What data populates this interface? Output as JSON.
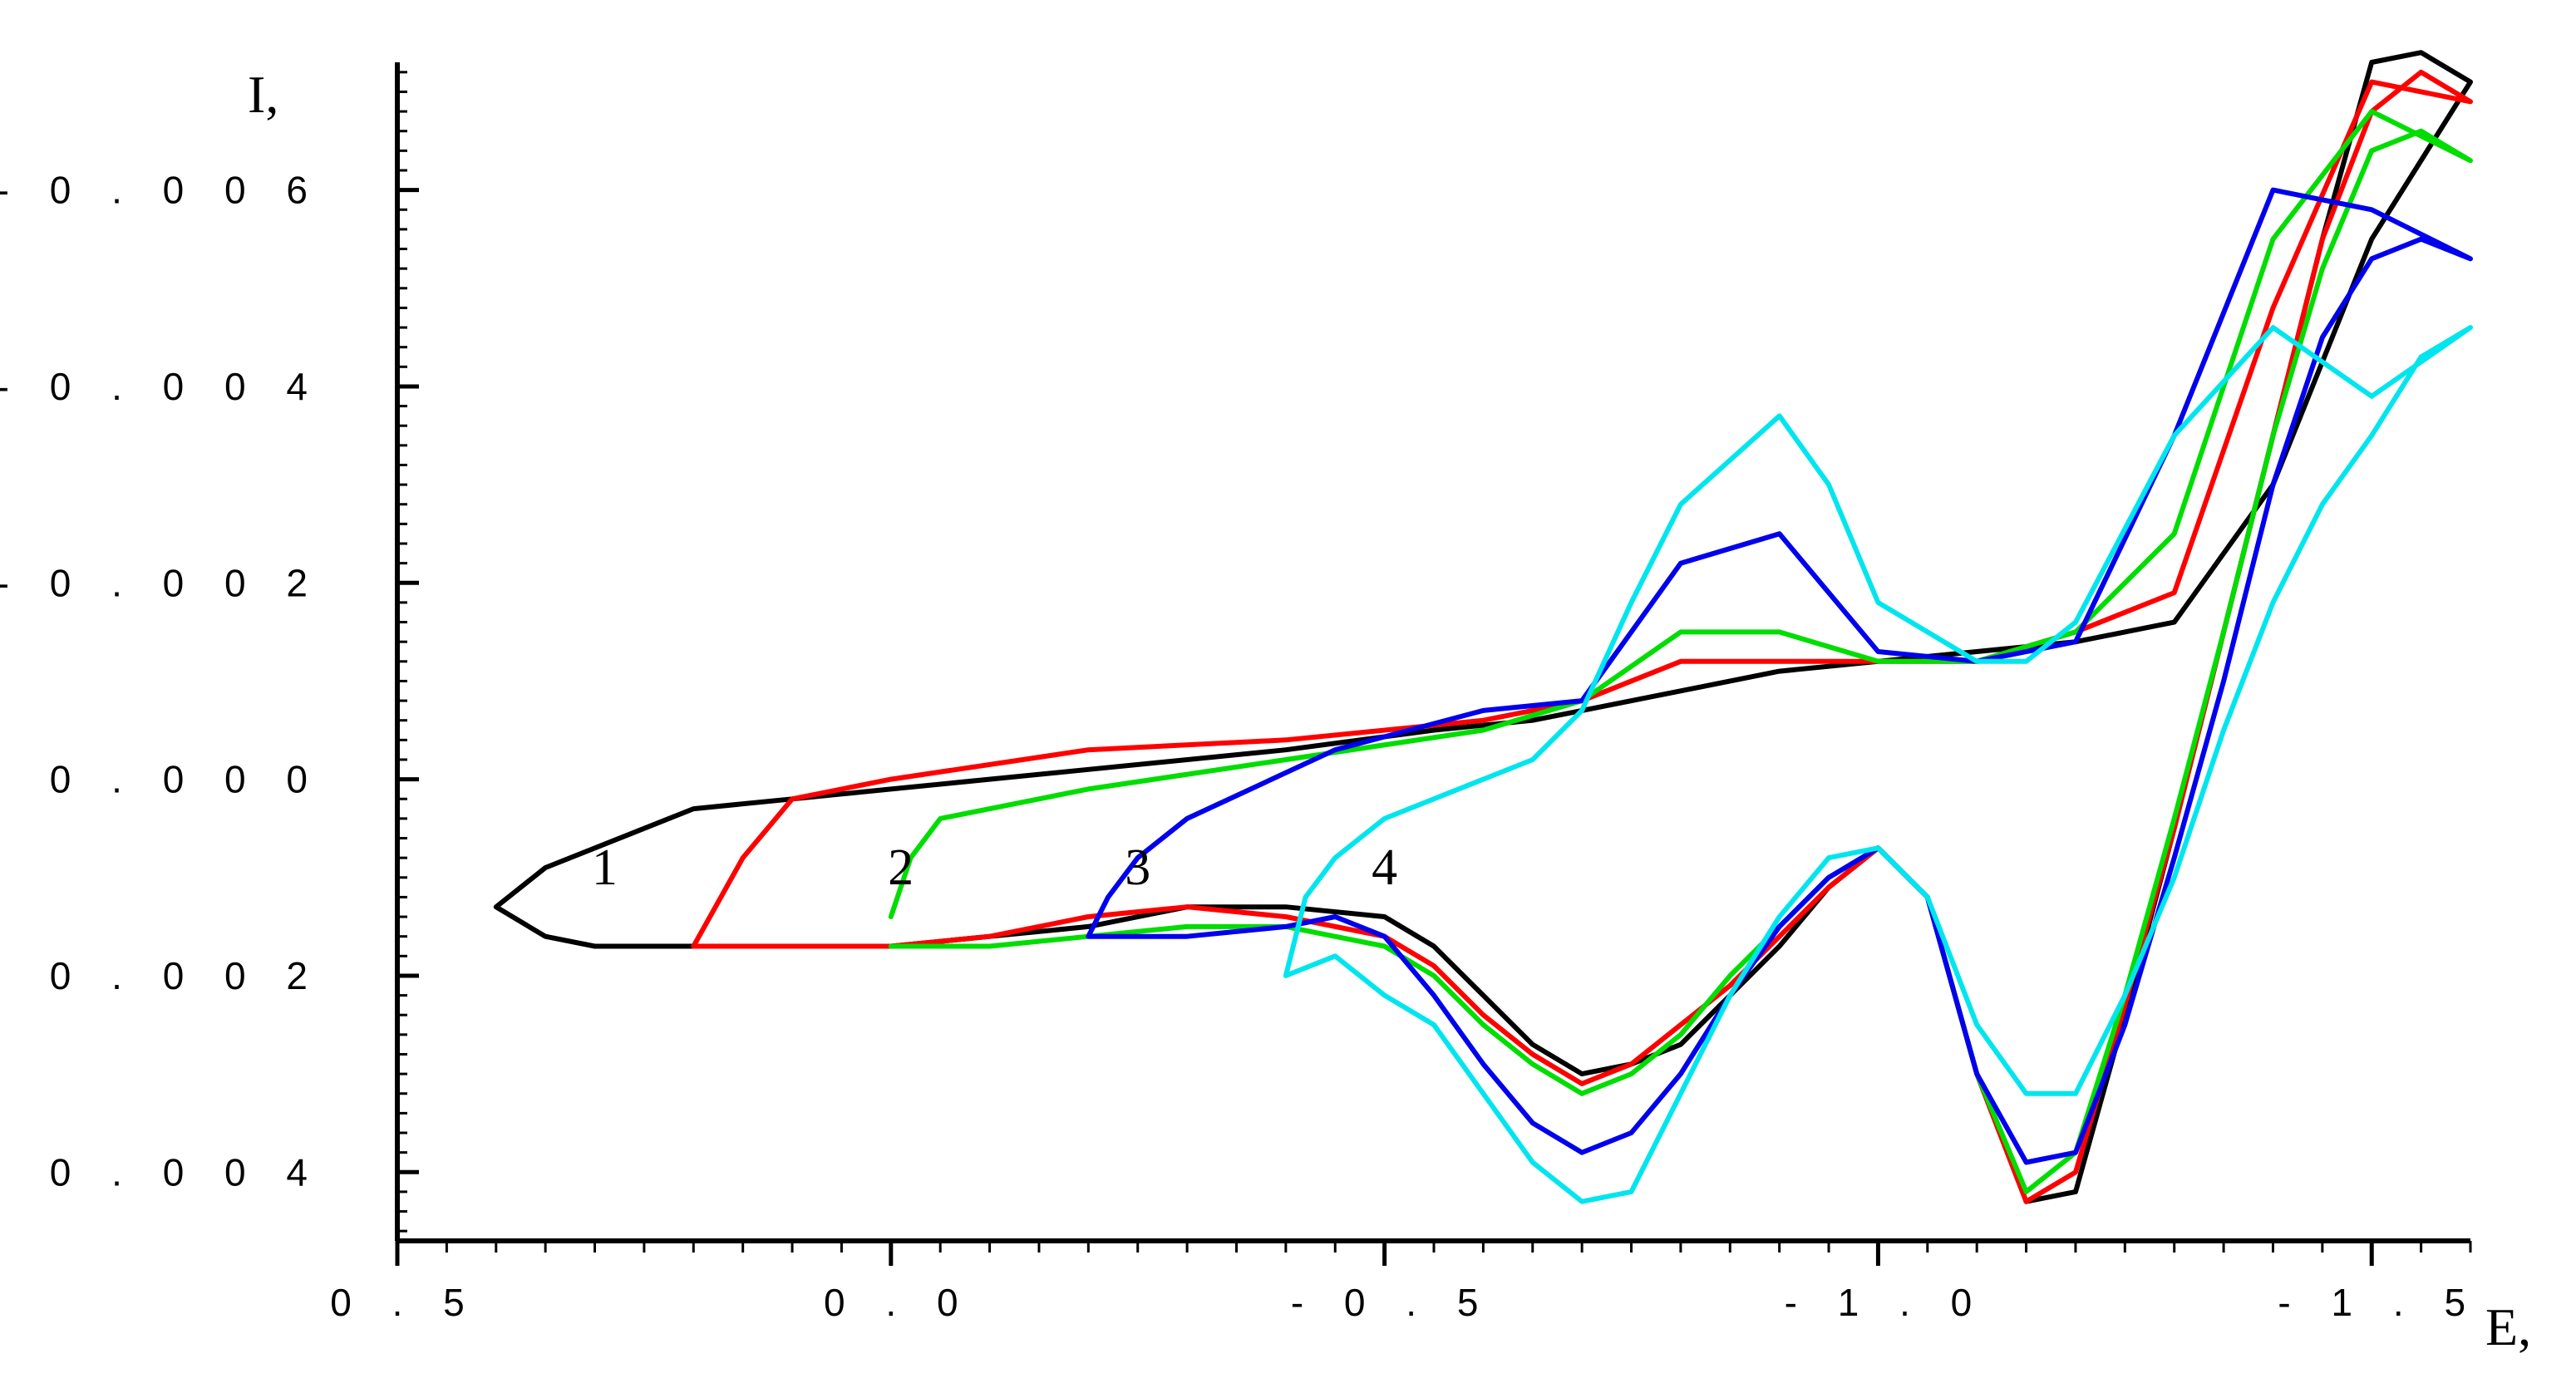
{
  "chart_data": {
    "type": "line",
    "title": "",
    "xlabel": "E,",
    "ylabel": "I,",
    "x_reversed": true,
    "y_reversed": true,
    "xlim": [
      0.5,
      -1.6
    ],
    "ylim": [
      -0.0073,
      0.0047
    ],
    "x_ticks": [
      {
        "value": 0.5,
        "label": "0 . 5"
      },
      {
        "value": 0.0,
        "label": "0 . 0"
      },
      {
        "value": -0.5,
        "label": "- 0 . 5"
      },
      {
        "value": -1.0,
        "label": "- 1 . 0"
      },
      {
        "value": -1.5,
        "label": "- 1 . 5"
      }
    ],
    "y_ticks": [
      {
        "value": -0.006,
        "label": "- 0 . 0 0 6"
      },
      {
        "value": -0.004,
        "label": "- 0 . 0 0 4"
      },
      {
        "value": -0.002,
        "label": "- 0 . 0 0 2"
      },
      {
        "value": 0.0,
        "label": "0 . 0 0 0"
      },
      {
        "value": 0.002,
        "label": "0 . 0 0 2"
      },
      {
        "value": 0.004,
        "label": "0 . 0 0 4"
      }
    ],
    "curve_labels": [
      {
        "text": "1",
        "x": 0.29,
        "y": 0.0009
      },
      {
        "text": "2",
        "x": -0.01,
        "y": 0.0009
      },
      {
        "text": "3",
        "x": -0.25,
        "y": 0.0009
      },
      {
        "text": "4",
        "x": -0.5,
        "y": 0.0009
      }
    ],
    "series": [
      {
        "color": "#000000",
        "x": [
          0.4,
          0.35,
          0.2,
          0.1,
          0.0,
          -0.2,
          -0.4,
          -0.55,
          -0.65,
          -0.7,
          -0.8,
          -0.9,
          -1.0,
          -1.1,
          -1.2,
          -1.3,
          -1.4,
          -1.5,
          -1.6,
          -1.6,
          -1.55,
          -1.5,
          -1.45,
          -1.4,
          -1.35,
          -1.3,
          -1.25,
          -1.2,
          -1.15,
          -1.1,
          -1.05,
          -1.0,
          -0.95,
          -0.9,
          -0.85,
          -0.8,
          -0.75,
          -0.7,
          -0.65,
          -0.6,
          -0.55,
          -0.5,
          -0.4,
          -0.3,
          -0.2,
          -0.1,
          0.0,
          0.1,
          0.2,
          0.3,
          0.35,
          0.4
        ],
        "y": [
          0.0013,
          0.0009,
          0.0003,
          0.0002,
          0.0001,
          -0.0001,
          -0.0003,
          -0.0005,
          -0.0006,
          -0.0007,
          -0.0009,
          -0.0011,
          -0.0012,
          -0.0013,
          -0.0014,
          -0.0016,
          -0.003,
          -0.0055,
          -0.0071,
          -0.0071,
          -0.0074,
          -0.0073,
          -0.0055,
          -0.0035,
          -0.0015,
          0.0005,
          0.0024,
          0.0042,
          0.0043,
          0.003,
          0.0012,
          0.0007,
          0.0011,
          0.0017,
          0.0022,
          0.0027,
          0.0029,
          0.003,
          0.0027,
          0.0022,
          0.0017,
          0.0014,
          0.0013,
          0.0013,
          0.0015,
          0.0016,
          0.0017,
          0.0017,
          0.0017,
          0.0017,
          0.0016,
          0.0013
        ]
      },
      {
        "color": "#ff0000",
        "x": [
          0.2,
          0.15,
          0.1,
          0.0,
          -0.2,
          -0.4,
          -0.6,
          -0.7,
          -0.8,
          -0.9,
          -1.0,
          -1.1,
          -1.2,
          -1.3,
          -1.4,
          -1.5,
          -1.6,
          -1.6,
          -1.55,
          -1.5,
          -1.45,
          -1.4,
          -1.35,
          -1.3,
          -1.25,
          -1.2,
          -1.15,
          -1.1,
          -1.05,
          -1.0,
          -0.95,
          -0.9,
          -0.85,
          -0.8,
          -0.75,
          -0.7,
          -0.65,
          -0.6,
          -0.55,
          -0.5,
          -0.4,
          -0.3,
          -0.2,
          -0.1,
          0.0,
          0.1,
          0.2
        ],
        "y": [
          0.0017,
          0.0008,
          0.0002,
          0.0,
          -0.0003,
          -0.0004,
          -0.0006,
          -0.0008,
          -0.0012,
          -0.0012,
          -0.0012,
          -0.0012,
          -0.0015,
          -0.0019,
          -0.0048,
          -0.0071,
          -0.0069,
          -0.0069,
          -0.0072,
          -0.0068,
          -0.0055,
          -0.0035,
          -0.0015,
          0.0005,
          0.0023,
          0.004,
          0.0043,
          0.003,
          0.0012,
          0.0007,
          0.0011,
          0.0016,
          0.0021,
          0.0025,
          0.0029,
          0.0031,
          0.0028,
          0.0024,
          0.0019,
          0.0016,
          0.0014,
          0.0013,
          0.0014,
          0.0016,
          0.0017,
          0.0017,
          0.0017
        ]
      },
      {
        "color": "#00dd00",
        "x": [
          0.0,
          -0.02,
          -0.05,
          -0.2,
          -0.4,
          -0.6,
          -0.7,
          -0.8,
          -0.9,
          -1.0,
          -1.1,
          -1.2,
          -1.3,
          -1.4,
          -1.5,
          -1.6,
          -1.6,
          -1.55,
          -1.5,
          -1.45,
          -1.4,
          -1.35,
          -1.3,
          -1.25,
          -1.2,
          -1.15,
          -1.1,
          -1.05,
          -1.0,
          -0.95,
          -0.9,
          -0.85,
          -0.8,
          -0.75,
          -0.7,
          -0.65,
          -0.6,
          -0.55,
          -0.5,
          -0.4,
          -0.3,
          -0.2,
          -0.1,
          0.0
        ],
        "y": [
          0.0014,
          0.0008,
          0.0004,
          0.0001,
          -0.0002,
          -0.0005,
          -0.0008,
          -0.0015,
          -0.0015,
          -0.0012,
          -0.0012,
          -0.0015,
          -0.0025,
          -0.0055,
          -0.0068,
          -0.0063,
          -0.0063,
          -0.0066,
          -0.0064,
          -0.0052,
          -0.0035,
          -0.0015,
          0.0004,
          0.0022,
          0.0038,
          0.0042,
          0.003,
          0.0012,
          0.0007,
          0.001,
          0.0015,
          0.002,
          0.0026,
          0.003,
          0.0032,
          0.0029,
          0.0025,
          0.002,
          0.0017,
          0.0015,
          0.0015,
          0.0016,
          0.0017,
          0.0017
        ]
      },
      {
        "color": "#0000ee",
        "x": [
          -0.2,
          -0.22,
          -0.25,
          -0.3,
          -0.45,
          -0.6,
          -0.7,
          -0.8,
          -0.9,
          -1.0,
          -1.1,
          -1.2,
          -1.3,
          -1.4,
          -1.5,
          -1.6,
          -1.6,
          -1.55,
          -1.5,
          -1.45,
          -1.4,
          -1.35,
          -1.3,
          -1.25,
          -1.2,
          -1.15,
          -1.1,
          -1.05,
          -1.0,
          -0.95,
          -0.9,
          -0.85,
          -0.8,
          -0.75,
          -0.7,
          -0.65,
          -0.6,
          -0.55,
          -0.5,
          -0.45,
          -0.4,
          -0.3,
          -0.2
        ],
        "y": [
          0.0016,
          0.0012,
          0.0008,
          0.0004,
          -0.0003,
          -0.0007,
          -0.0008,
          -0.0022,
          -0.0025,
          -0.0013,
          -0.0012,
          -0.0014,
          -0.0035,
          -0.006,
          -0.0058,
          -0.0053,
          -0.0053,
          -0.0055,
          -0.0053,
          -0.0045,
          -0.003,
          -0.001,
          0.0008,
          0.0025,
          0.0038,
          0.0039,
          0.003,
          0.0012,
          0.0007,
          0.001,
          0.0015,
          0.0022,
          0.003,
          0.0036,
          0.0038,
          0.0035,
          0.0029,
          0.0022,
          0.0016,
          0.0014,
          0.0015,
          0.0016,
          0.0016
        ]
      },
      {
        "color": "#00e5ee",
        "x": [
          -0.4,
          -0.42,
          -0.45,
          -0.5,
          -0.6,
          -0.65,
          -0.7,
          -0.75,
          -0.8,
          -0.9,
          -0.95,
          -1.0,
          -1.1,
          -1.15,
          -1.2,
          -1.3,
          -1.4,
          -1.5,
          -1.6,
          -1.6,
          -1.55,
          -1.5,
          -1.45,
          -1.4,
          -1.35,
          -1.3,
          -1.25,
          -1.2,
          -1.15,
          -1.1,
          -1.05,
          -1.0,
          -0.95,
          -0.9,
          -0.85,
          -0.8,
          -0.75,
          -0.7,
          -0.65,
          -0.6,
          -0.55,
          -0.5,
          -0.45,
          -0.4
        ],
        "y": [
          0.002,
          0.0012,
          0.0008,
          0.0004,
          0.0,
          -0.0002,
          -0.0007,
          -0.0018,
          -0.0028,
          -0.0037,
          -0.003,
          -0.0018,
          -0.0012,
          -0.0012,
          -0.0016,
          -0.0035,
          -0.0046,
          -0.0039,
          -0.0046,
          -0.0046,
          -0.0043,
          -0.0035,
          -0.0028,
          -0.0018,
          -0.0005,
          0.001,
          0.0022,
          0.0032,
          0.0032,
          0.0025,
          0.0012,
          0.0007,
          0.0008,
          0.0014,
          0.0022,
          0.0032,
          0.0042,
          0.0043,
          0.0039,
          0.0032,
          0.0025,
          0.0022,
          0.0018,
          0.002
        ]
      }
    ]
  }
}
